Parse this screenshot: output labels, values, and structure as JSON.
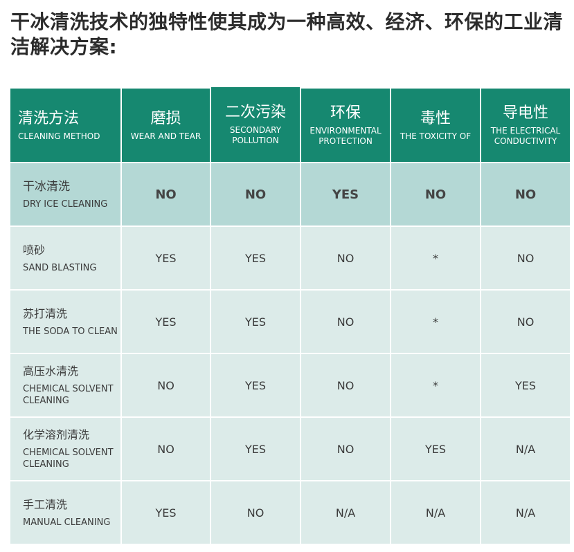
{
  "title": "干冰清洗技术的独特性使其成为一种高效、经济、环保的工业清洁解决方案:",
  "colors": {
    "header_bg": "#168870",
    "highlight_row_bg": "#b4d8d5",
    "row_bg": "#dcebe9",
    "text": "#3a3a3a"
  },
  "table": {
    "headers": [
      {
        "zh": "清洗方法",
        "en": "CLEANING METHOD"
      },
      {
        "zh": "磨损",
        "en": "WEAR AND TEAR"
      },
      {
        "zh": "二次污染",
        "en": "SECONDARY POLLUTION"
      },
      {
        "zh": "环保",
        "en": "ENVIRONMENTAL PROTECTION"
      },
      {
        "zh": "毒性",
        "en": "THE TOXICITY OF"
      },
      {
        "zh": "导电性",
        "en": "THE ELECTRICAL CONDUCTIVITY"
      }
    ],
    "rows": [
      {
        "zh": "干冰清洗",
        "en": "DRY ICE CLEANING",
        "values": [
          "NO",
          "NO",
          "YES",
          "NO",
          "NO"
        ],
        "highlight": true
      },
      {
        "zh": "喷砂",
        "en": "SAND BLASTING",
        "values": [
          "YES",
          "YES",
          "NO",
          "*",
          "NO"
        ]
      },
      {
        "zh": "苏打清洗",
        "en": "THE SODA TO CLEAN",
        "values": [
          "YES",
          "YES",
          "NO",
          "*",
          "NO"
        ]
      },
      {
        "zh": "高压水清洗",
        "en": "CHEMICAL SOLVENT CLEANING",
        "values": [
          "NO",
          "YES",
          "NO",
          "*",
          "YES"
        ]
      },
      {
        "zh": "化学溶剂清洗",
        "en": "CHEMICAL SOLVENT CLEANING",
        "values": [
          "NO",
          "YES",
          "NO",
          "YES",
          "N/A"
        ]
      },
      {
        "zh": "手工清洗",
        "en": "MANUAL CLEANING",
        "values": [
          "YES",
          "NO",
          "N/A",
          "N/A",
          "N/A"
        ]
      }
    ]
  }
}
